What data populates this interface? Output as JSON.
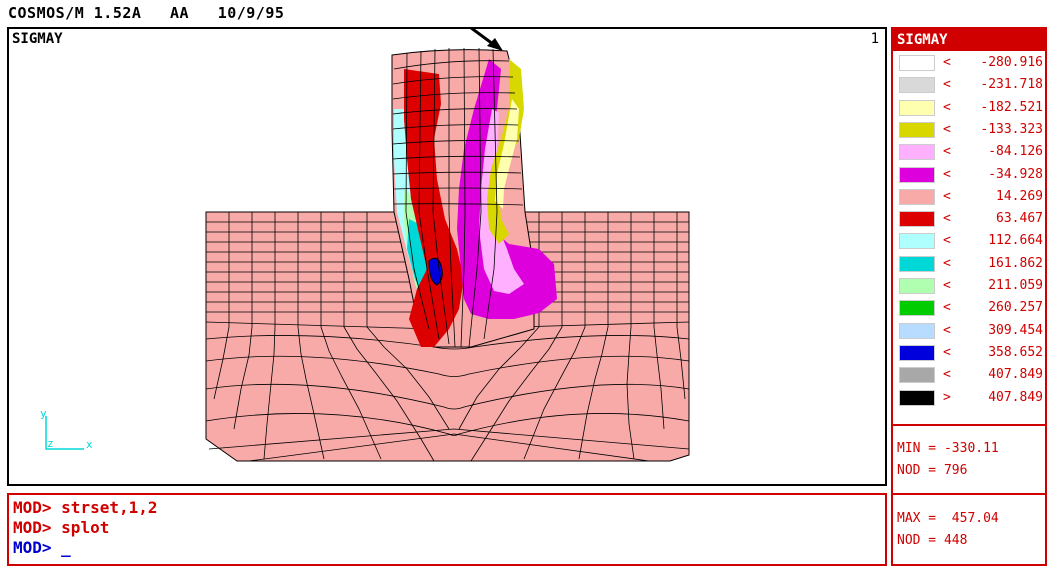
{
  "header": {
    "app": "COSMOS/M 1.52A",
    "user": "AA",
    "date": "10/9/95"
  },
  "viewport": {
    "label": "SIGMAY",
    "number": "1",
    "axes": {
      "y": "y",
      "z": "z",
      "x": "x"
    }
  },
  "legend": {
    "title": "SIGMAY",
    "entries": [
      {
        "sym": "<",
        "value": "-280.916",
        "color": "#ffffff"
      },
      {
        "sym": "<",
        "value": "-231.718",
        "color": "#d9d9d9"
      },
      {
        "sym": "<",
        "value": "-182.521",
        "color": "#ffffb0"
      },
      {
        "sym": "<",
        "value": "-133.323",
        "color": "#d8d800"
      },
      {
        "sym": "<",
        "value": "-84.126",
        "color": "#ffb0ff"
      },
      {
        "sym": "<",
        "value": "-34.928",
        "color": "#dd00dd"
      },
      {
        "sym": "<",
        "value": "14.269",
        "color": "#f7aaa8"
      },
      {
        "sym": "<",
        "value": "63.467",
        "color": "#dd0000"
      },
      {
        "sym": "<",
        "value": "112.664",
        "color": "#b0ffff"
      },
      {
        "sym": "<",
        "value": "161.862",
        "color": "#00d8d8"
      },
      {
        "sym": "<",
        "value": "211.059",
        "color": "#b0ffb0"
      },
      {
        "sym": "<",
        "value": "260.257",
        "color": "#00cc00"
      },
      {
        "sym": "<",
        "value": "309.454",
        "color": "#b8dcff"
      },
      {
        "sym": "<",
        "value": "358.652",
        "color": "#0000dd"
      },
      {
        "sym": "<",
        "value": "407.849",
        "color": "#a8a8a8"
      },
      {
        "sym": ">",
        "value": "407.849",
        "color": "#000000"
      }
    ],
    "min_label": "MIN = -330.11",
    "min_node": "NOD = 796",
    "max_label": "MAX =  457.04",
    "max_node": "NOD = 448"
  },
  "console": {
    "lines": [
      {
        "prompt": "MOD>",
        "command": "strset,1,2"
      },
      {
        "prompt": "MOD>",
        "command": "splot"
      },
      {
        "prompt": "MOD>",
        "command": "_"
      }
    ]
  }
}
